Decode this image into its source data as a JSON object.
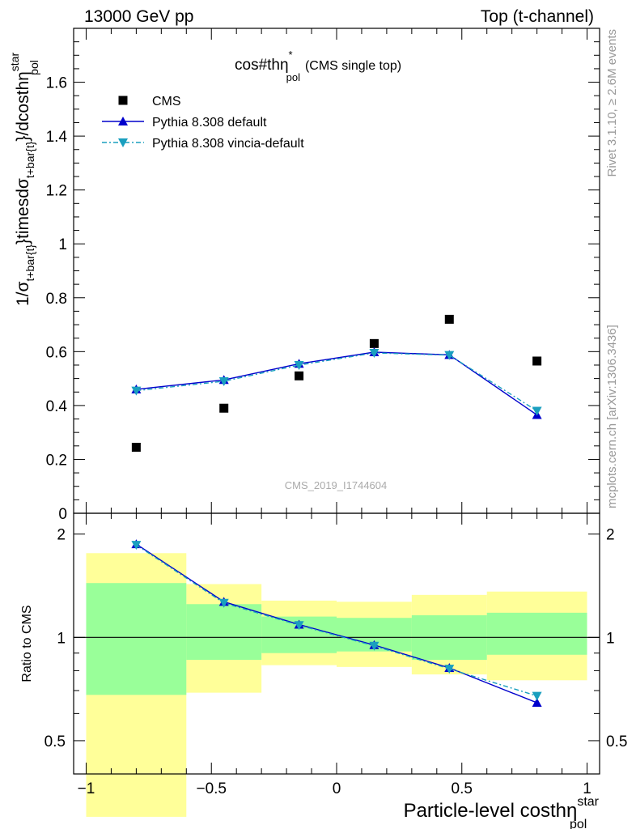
{
  "header": {
    "left": "13000 GeV pp",
    "right": "Top (t-channel)"
  },
  "side_text": {
    "rivet": "Rivet 3.1.10, ≥ 2.6M events",
    "mcplots": "mcplots.cern.ch [arXiv:1306.3436]"
  },
  "watermark": "CMS_2019_I1744604",
  "title": {
    "main": "cos#thη",
    "sup": "*",
    "sub": "pol",
    "tail": "(CMS single top)"
  },
  "ylabel_main": {
    "p1": "1/σ",
    "s1": "t+bar{t}",
    "p2": "}timesdσ",
    "s2": "t+bar{t}",
    "p3": "}/dcosthη",
    "sup": "star",
    "sub": "pol"
  },
  "ylabel_ratio": "Ratio to CMS",
  "xlabel": {
    "main": "Particle-level costhη",
    "sup": "star",
    "sub": "pol"
  },
  "colors": {
    "cms": "#000000",
    "pythia_default": "#0000cc",
    "pythia_vincia": "#1a9fbf",
    "band_outer": "#ffff99",
    "band_inner": "#99ff99"
  },
  "chart_data": {
    "type": "scatter",
    "x": [
      -0.8,
      -0.45,
      -0.15,
      0.15,
      0.45,
      0.8
    ],
    "bin_edges": [
      -1.0,
      -0.6,
      -0.3,
      0.0,
      0.3,
      0.6,
      1.0
    ],
    "xlim": [
      -1.05,
      1.05
    ],
    "main": {
      "ylim": [
        0,
        1.8
      ],
      "yticks": [
        0,
        0.2,
        0.4,
        0.6,
        0.8,
        1.0,
        1.2,
        1.4,
        1.6
      ],
      "series": [
        {
          "name": "CMS",
          "marker": "square",
          "values": [
            0.245,
            0.39,
            0.51,
            0.63,
            0.72,
            0.565
          ]
        },
        {
          "name": "Pythia 8.308 default",
          "marker": "triangle-up",
          "style": "solid",
          "values": [
            0.46,
            0.495,
            0.555,
            0.598,
            0.588,
            0.365
          ]
        },
        {
          "name": "Pythia 8.308 vincia-default",
          "marker": "triangle-down",
          "style": "dashdot",
          "values": [
            0.455,
            0.49,
            0.55,
            0.595,
            0.587,
            0.38
          ]
        }
      ]
    },
    "ratio": {
      "ylim": [
        0.4,
        2.3
      ],
      "log": true,
      "yticks": [
        0.5,
        1,
        2
      ],
      "reference": 1,
      "band_outer": [
        [
          0.3,
          1.76
        ],
        [
          0.69,
          1.43
        ],
        [
          0.83,
          1.28
        ],
        [
          0.82,
          1.27
        ],
        [
          0.78,
          1.33
        ],
        [
          0.75,
          1.36
        ]
      ],
      "band_inner": [
        [
          0.68,
          1.44
        ],
        [
          0.86,
          1.25
        ],
        [
          0.9,
          1.15
        ],
        [
          0.91,
          1.14
        ],
        [
          0.86,
          1.16
        ],
        [
          0.89,
          1.18
        ]
      ],
      "series": [
        {
          "name": "Pythia 8.308 default",
          "values": [
            1.87,
            1.27,
            1.09,
            0.95,
            0.815,
            0.645
          ]
        },
        {
          "name": "Pythia 8.308 vincia-default",
          "values": [
            1.86,
            1.26,
            1.085,
            0.945,
            0.81,
            0.675
          ]
        }
      ]
    },
    "xticks": [
      -1,
      -0.5,
      0,
      0.5,
      1
    ],
    "xtick_labels": [
      "−1",
      "−0.5",
      "0",
      "0.5",
      "1"
    ],
    "legend_position": "top-left",
    "grid": false
  }
}
